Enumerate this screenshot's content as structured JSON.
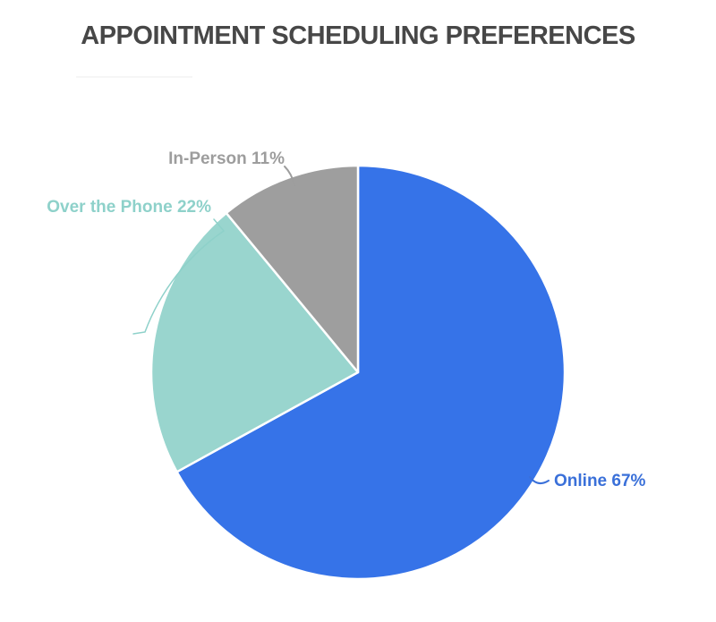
{
  "page": {
    "background_color": "#ffffff"
  },
  "chart_data": {
    "type": "pie",
    "title": "APPOINTMENT SCHEDULING PREFERENCES",
    "title_color": "#474747",
    "categories": [
      "Online",
      "Over the Phone",
      "In-Person"
    ],
    "values": [
      67,
      22,
      11
    ],
    "unit": "%",
    "total": 100,
    "start_angle_deg": 0,
    "direction": "clockwise",
    "legend_position": "none",
    "grid": false,
    "slice_colors": [
      "#3673e8",
      "#99d5ce",
      "#9e9e9e"
    ],
    "slice_border_color": "#ffffff",
    "labels": [
      {
        "category": "Online",
        "value": 67,
        "text": "Online 67%",
        "color": "#3a70d9"
      },
      {
        "category": "Over the Phone",
        "value": 22,
        "text": "Over the Phone 22%",
        "color": "#8ed1ca"
      },
      {
        "category": "In-Person",
        "value": 11,
        "text": "In-Person 11%",
        "color": "#9d9d9d"
      }
    ]
  }
}
